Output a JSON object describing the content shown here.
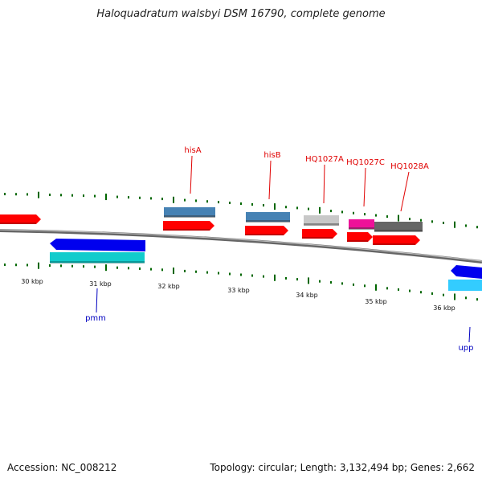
{
  "title": "Haloquadratum walsbyi DSM 16790, complete genome",
  "footer": {
    "accession": "Accession: NC_008212",
    "summary": "Topology: circular; Length: 3,132,494 bp; Genes: 2,662"
  },
  "ticks": [
    {
      "label": "30 kbp"
    },
    {
      "label": "31 kbp"
    },
    {
      "label": "32 kbp"
    },
    {
      "label": "33 kbp"
    },
    {
      "label": "34 kbp"
    },
    {
      "label": "35 kbp"
    },
    {
      "label": "36 kbp"
    }
  ],
  "gene_labels": [
    {
      "name": "hisA",
      "color": "#e00000"
    },
    {
      "name": "hisB",
      "color": "#e00000"
    },
    {
      "name": "HQ1027A",
      "color": "#e00000"
    },
    {
      "name": "HQ1027C",
      "color": "#e00000"
    },
    {
      "name": "HQ1028A",
      "color": "#e00000"
    },
    {
      "name": "pmm",
      "color": "#0000c0"
    },
    {
      "name": "upp",
      "color": "#0000c0"
    }
  ],
  "colors": {
    "cds": "#ff0000",
    "forward_gene_steelblue": "#4682b4",
    "forward_gene_silver": "#c8c8c8",
    "forward_gene_magenta": "#ee1199",
    "forward_gene_gray": "#666666",
    "reverse_gene_blue": "#0000ee",
    "reverse_gene_cyan": "#11cccc",
    "backbone": "#888888",
    "gc_skew": "#006600"
  }
}
